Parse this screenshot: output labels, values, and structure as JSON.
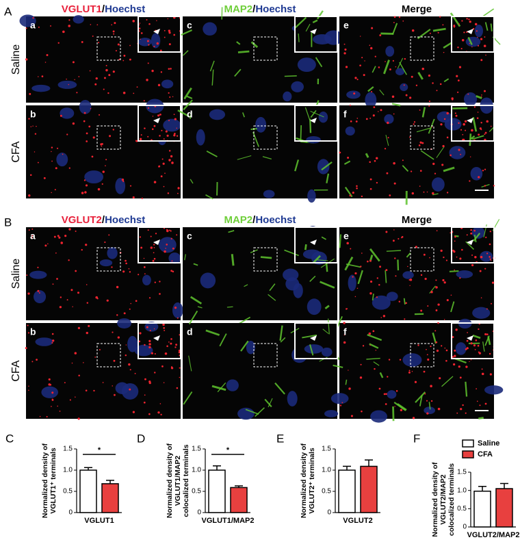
{
  "figure": {
    "panels": [
      {
        "label": "A",
        "headers": [
          [
            "VGLUT1",
            "/",
            "Hoechst"
          ],
          [
            "MAP2",
            "/",
            "Hoechst"
          ],
          [
            "Merge"
          ]
        ],
        "rows": [
          {
            "label": "Saline",
            "letters": [
              "a",
              "c",
              "e"
            ]
          },
          {
            "label": "CFA",
            "letters": [
              "b",
              "d",
              "f"
            ]
          }
        ]
      },
      {
        "label": "B",
        "headers": [
          [
            "VGLUT2",
            "/",
            "Hoechst"
          ],
          [
            "MAP2",
            "/",
            "Hoechst"
          ],
          [
            "Merge"
          ]
        ],
        "rows": [
          {
            "label": "Saline",
            "letters": [
              "a",
              "c",
              "e"
            ]
          },
          {
            "label": "CFA",
            "letters": [
              "b",
              "d",
              "f"
            ]
          }
        ]
      }
    ],
    "legend": [
      {
        "name": "Saline",
        "color": "#ffffff"
      },
      {
        "name": "CFA",
        "color": "#e8403f"
      }
    ]
  },
  "chart_data": [
    {
      "type": "bar",
      "label": "C",
      "ylabel": [
        "Normalized density of",
        "VGLUT1⁺ terminals"
      ],
      "categories": [
        "VGLUT1"
      ],
      "series": [
        {
          "values": [
            1.0
          ],
          "errors": [
            0.06
          ]
        },
        {
          "values": [
            0.68
          ],
          "errors": [
            0.08
          ]
        }
      ],
      "significance": "*",
      "ylim": [
        0,
        1.5
      ],
      "yticks": [
        0,
        0.5,
        {
          "value": 1,
          "label": "1.0"
        },
        1.5
      ]
    },
    {
      "type": "bar",
      "label": "D",
      "ylabel": [
        "Normalized density of",
        "VGLUT1/MAP2",
        "colocalized terminals"
      ],
      "categories": [
        "VGLUT1/MAP2"
      ],
      "series": [
        {
          "values": [
            1.0
          ],
          "errors": [
            0.1
          ]
        },
        {
          "values": [
            0.59
          ],
          "errors": [
            0.04
          ]
        }
      ],
      "significance": "*",
      "ylim": [
        0,
        1.5
      ],
      "yticks": [
        0,
        0.5,
        {
          "value": 1,
          "label": "1.0"
        },
        1.5
      ]
    },
    {
      "type": "bar",
      "label": "E",
      "ylabel": [
        "Normalized density of",
        "VGLUT2⁺ terminals"
      ],
      "categories": [
        "VGLUT2"
      ],
      "series": [
        {
          "values": [
            1.0
          ],
          "errors": [
            0.09
          ]
        },
        {
          "values": [
            1.09
          ],
          "errors": [
            0.15
          ]
        }
      ],
      "ylim": [
        0,
        1.5
      ],
      "yticks": [
        0,
        0.5,
        {
          "value": 1,
          "label": "1.0"
        },
        1.5
      ]
    },
    {
      "type": "bar",
      "label": "F",
      "ylabel": [
        "Normalized density of",
        "VGLUT2/MAP2",
        "colocalized terminals"
      ],
      "categories": [
        "VGLUT2/MAP2"
      ],
      "series": [
        {
          "values": [
            0.98
          ],
          "errors": [
            0.13
          ]
        },
        {
          "values": [
            1.05
          ],
          "errors": [
            0.14
          ]
        }
      ],
      "ylim": [
        0,
        1.5
      ],
      "yticks": [
        0,
        0.5,
        {
          "value": 1,
          "label": "1.0"
        },
        1.5
      ]
    }
  ]
}
